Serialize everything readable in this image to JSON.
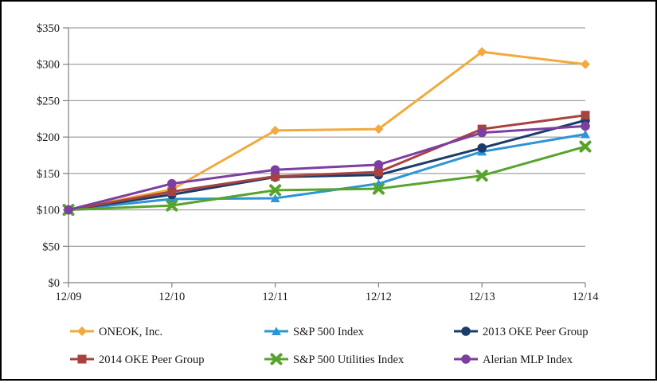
{
  "chart": {
    "frame_border_color": "#000000",
    "background_color": "#ffffff",
    "grid_color": "#8c8c8c",
    "axis_color": "#808080"
  },
  "chart_data": {
    "type": "line",
    "title": "",
    "xlabel": "",
    "ylabel": "",
    "x": [
      "12/09",
      "12/10",
      "12/11",
      "12/12",
      "12/13",
      "12/14"
    ],
    "ylim": [
      0,
      350
    ],
    "ytick_step": 50,
    "ytick_labels": [
      "$0",
      "$50",
      "$100",
      "$150",
      "$200",
      "$250",
      "$300",
      "$350"
    ],
    "grid": "horizontal",
    "legend_position": "bottom",
    "legend_rows": [
      [
        0,
        1,
        2
      ],
      [
        3,
        4,
        5
      ]
    ],
    "series": [
      {
        "name": "ONEOK, Inc.",
        "color": "#F2A93D",
        "marker": "diamond",
        "values": [
          100,
          128,
          209,
          211,
          317,
          300
        ]
      },
      {
        "name": "S&P 500 Index",
        "color": "#2D95D3",
        "marker": "triangle",
        "values": [
          100,
          115,
          116,
          136,
          180,
          204
        ]
      },
      {
        "name": "2013 OKE Peer Group",
        "color": "#1B3C6B",
        "marker": "circle",
        "values": [
          100,
          121,
          145,
          148,
          185,
          223
        ]
      },
      {
        "name": "2014 OKE Peer Group",
        "color": "#A8423F",
        "marker": "square",
        "values": [
          100,
          125,
          146,
          152,
          211,
          230
        ]
      },
      {
        "name": "S&P 500 Utilities Index",
        "color": "#57A42C",
        "marker": "x",
        "values": [
          100,
          106,
          127,
          129,
          147,
          187
        ]
      },
      {
        "name": "Alerian MLP Index",
        "color": "#7C3FA0",
        "marker": "circle",
        "values": [
          100,
          136,
          155,
          162,
          206,
          215
        ]
      }
    ]
  }
}
